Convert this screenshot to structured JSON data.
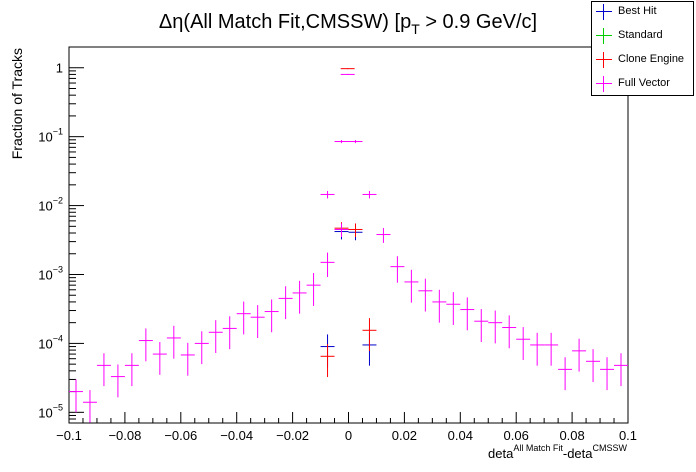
{
  "chart_data": {
    "type": "scatter",
    "title_main": "Δη(All Match Fit,CMSSW) [p",
    "title_sub": "T",
    "title_rest": " > 0.9 GeV/c]",
    "ylabel": "Fraction of Tracks",
    "xlabel_main": "deta",
    "xlabel_sup1": "All Match Fit",
    "xlabel_mid": "-deta",
    "xlabel_sup2": "CMSSW",
    "xlim": [
      -0.1,
      0.1
    ],
    "ylim": [
      7e-06,
      2
    ],
    "yscale": "log",
    "bin_width": 0.005,
    "x_ticks": [
      {
        "v": -0.1,
        "label": "−0.1"
      },
      {
        "v": -0.08,
        "label": "−0.08"
      },
      {
        "v": -0.06,
        "label": "−0.06"
      },
      {
        "v": -0.04,
        "label": "−0.04"
      },
      {
        "v": -0.02,
        "label": "−0.02"
      },
      {
        "v": 0,
        "label": "0"
      },
      {
        "v": 0.02,
        "label": "0.02"
      },
      {
        "v": 0.04,
        "label": "0.04"
      },
      {
        "v": 0.06,
        "label": "0.06"
      },
      {
        "v": 0.08,
        "label": "0.08"
      },
      {
        "v": 0.1,
        "label": "0.1"
      }
    ],
    "y_ticks": [
      {
        "v": 1,
        "base": "1",
        "exp": ""
      },
      {
        "v": 0.1,
        "base": "10",
        "exp": "−1"
      },
      {
        "v": 0.01,
        "base": "10",
        "exp": "−2"
      },
      {
        "v": 0.001,
        "base": "10",
        "exp": "−3"
      },
      {
        "v": 0.0001,
        "base": "10",
        "exp": "−4"
      },
      {
        "v": 1e-05,
        "base": "10",
        "exp": "−5"
      }
    ],
    "legend_position": "top-right",
    "series": [
      {
        "name": "Best Hit",
        "color": "#0000cc",
        "points": [
          [
            -0.0075,
            9e-05
          ],
          [
            -0.0025,
            0.0042
          ],
          [
            0.0025,
            0.0041
          ],
          [
            0.0075,
            9.5e-05
          ]
        ]
      },
      {
        "name": "Standard",
        "color": "#00cc00",
        "points": []
      },
      {
        "name": "Clone Engine",
        "color": "#ff0000",
        "points": [
          [
            -0.0075,
            6.5e-05
          ],
          [
            -0.0025,
            0.0047
          ],
          [
            -0.0003,
            0.97
          ],
          [
            0.0025,
            0.0045
          ],
          [
            0.0075,
            0.000155
          ]
        ]
      },
      {
        "name": "Full Vector",
        "color": "#ff00ff",
        "points": [
          [
            -0.0975,
            2e-05
          ],
          [
            -0.0925,
            1.4e-05
          ],
          [
            -0.0875,
            4.8e-05
          ],
          [
            -0.0825,
            3.3e-05
          ],
          [
            -0.0775,
            4.8e-05
          ],
          [
            -0.0725,
            0.00011
          ],
          [
            -0.0675,
            7e-05
          ],
          [
            -0.0625,
            0.00012
          ],
          [
            -0.0575,
            6.8e-05
          ],
          [
            -0.0525,
            0.0001
          ],
          [
            -0.0475,
            0.000145
          ],
          [
            -0.0425,
            0.000165
          ],
          [
            -0.0375,
            0.00027
          ],
          [
            -0.0325,
            0.00024
          ],
          [
            -0.0275,
            0.00029
          ],
          [
            -0.0225,
            0.00045
          ],
          [
            -0.0175,
            0.00054
          ],
          [
            -0.0125,
            0.0007
          ],
          [
            -0.0075,
            0.0015
          ],
          [
            -0.0025,
            0.0045
          ],
          [
            -0.0075,
            0.0145
          ],
          [
            -0.0025,
            0.085
          ],
          [
            -0.0003,
            0.8
          ],
          [
            0.0025,
            0.085
          ],
          [
            0.0075,
            0.0145
          ],
          [
            0.0125,
            0.0038
          ],
          [
            0.0175,
            0.0013
          ],
          [
            0.0225,
            0.00078
          ],
          [
            0.0275,
            0.00058
          ],
          [
            0.0325,
            0.0004
          ],
          [
            0.0375,
            0.00037
          ],
          [
            0.0425,
            0.00031
          ],
          [
            0.0475,
            0.00021
          ],
          [
            0.0525,
            0.0002
          ],
          [
            0.0575,
            0.00017
          ],
          [
            0.0625,
            0.000115
          ],
          [
            0.0675,
            9.5e-05
          ],
          [
            0.0725,
            9.5e-05
          ],
          [
            0.0775,
            4.2e-05
          ],
          [
            0.0825,
            7.8e-05
          ],
          [
            0.0875,
            5.5e-05
          ],
          [
            0.0925,
            4.2e-05
          ],
          [
            0.0975,
            4.8e-05
          ],
          [
            0.1025,
            5.5e-05
          ],
          [
            0.1075,
            3.3e-05
          ]
        ]
      }
    ]
  }
}
